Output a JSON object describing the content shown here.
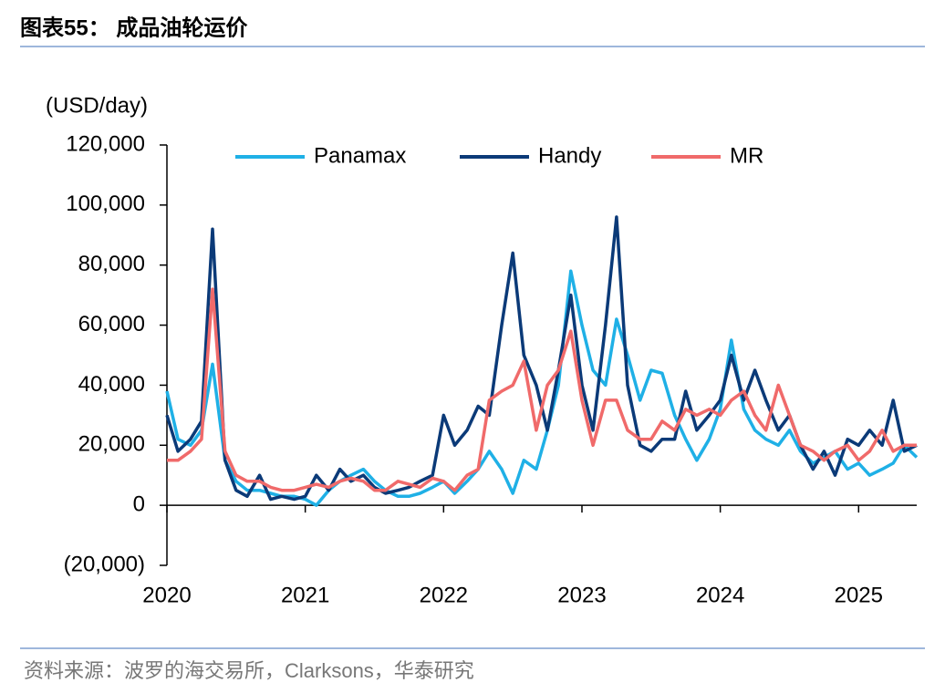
{
  "header": {
    "title": "图表55：  成品油轮运价"
  },
  "chart_data": {
    "type": "line",
    "y_label": "(USD/day)",
    "x": [
      2020,
      2020.08,
      2020.17,
      2020.25,
      2020.33,
      2020.42,
      2020.5,
      2020.58,
      2020.67,
      2020.75,
      2020.83,
      2020.92,
      2021,
      2021.08,
      2021.17,
      2021.25,
      2021.33,
      2021.42,
      2021.5,
      2021.58,
      2021.67,
      2021.75,
      2021.83,
      2021.92,
      2022,
      2022.08,
      2022.17,
      2022.25,
      2022.33,
      2022.42,
      2022.5,
      2022.58,
      2022.67,
      2022.75,
      2022.83,
      2022.92,
      2023,
      2023.08,
      2023.17,
      2023.25,
      2023.33,
      2023.42,
      2023.5,
      2023.58,
      2023.67,
      2023.75,
      2023.83,
      2023.92,
      2024,
      2024.08,
      2024.17,
      2024.25,
      2024.33,
      2024.42,
      2024.5,
      2024.58,
      2024.67,
      2024.75,
      2024.83,
      2024.92,
      2025,
      2025.08,
      2025.17,
      2025.25,
      2025.33,
      2025.42
    ],
    "series": [
      {
        "name": "Panamax",
        "color": "#1fb0e6",
        "values": [
          38000,
          22000,
          20000,
          25000,
          47000,
          15000,
          8000,
          5000,
          5000,
          4000,
          3000,
          3000,
          2000,
          0,
          5000,
          8000,
          10000,
          12000,
          8000,
          5000,
          3000,
          3000,
          4000,
          6000,
          8000,
          4000,
          8000,
          12000,
          18000,
          12000,
          4000,
          15000,
          12000,
          25000,
          40000,
          78000,
          60000,
          45000,
          40000,
          62000,
          50000,
          35000,
          45000,
          44000,
          30000,
          22000,
          15000,
          22000,
          32000,
          55000,
          32000,
          25000,
          22000,
          20000,
          25000,
          18000,
          14000,
          16000,
          18000,
          12000,
          14000,
          10000,
          12000,
          14000,
          20000,
          16000
        ]
      },
      {
        "name": "Handy",
        "color": "#0b3a78",
        "values": [
          30000,
          18000,
          22000,
          28000,
          92000,
          15000,
          5000,
          3000,
          10000,
          2000,
          3000,
          2000,
          3000,
          10000,
          5000,
          12000,
          8000,
          10000,
          6000,
          4000,
          5000,
          6000,
          8000,
          10000,
          30000,
          20000,
          25000,
          33000,
          30000,
          60000,
          84000,
          50000,
          40000,
          25000,
          45000,
          70000,
          40000,
          25000,
          60000,
          96000,
          40000,
          20000,
          18000,
          22000,
          22000,
          38000,
          25000,
          30000,
          35000,
          50000,
          35000,
          45000,
          35000,
          25000,
          30000,
          20000,
          12000,
          18000,
          10000,
          22000,
          20000,
          25000,
          20000,
          35000,
          18000,
          20000
        ]
      },
      {
        "name": "MR",
        "color": "#f06a6a",
        "values": [
          15000,
          15000,
          18000,
          22000,
          72000,
          18000,
          10000,
          8000,
          8000,
          6000,
          5000,
          5000,
          6000,
          7000,
          6000,
          8000,
          9000,
          8000,
          5000,
          5000,
          8000,
          7000,
          6000,
          9000,
          8000,
          5000,
          10000,
          12000,
          35000,
          38000,
          40000,
          48000,
          25000,
          40000,
          45000,
          58000,
          35000,
          20000,
          35000,
          35000,
          25000,
          22000,
          22000,
          28000,
          25000,
          32000,
          30000,
          32000,
          30000,
          35000,
          38000,
          30000,
          25000,
          40000,
          30000,
          20000,
          18000,
          15000,
          18000,
          20000,
          15000,
          18000,
          25000,
          18000,
          20000,
          20000
        ]
      }
    ],
    "xlim": [
      2020,
      2025.42
    ],
    "xticks": [
      2020,
      2021,
      2022,
      2023,
      2024,
      2025
    ],
    "ylim": [
      -20000,
      120000
    ],
    "yticks": [
      {
        "value": -20000,
        "label": "(20,000)"
      },
      0,
      {
        "value": 20000,
        "label": "20,000"
      },
      {
        "value": 40000,
        "label": "40,000"
      },
      {
        "value": 60000,
        "label": "60,000"
      },
      {
        "value": 80000,
        "label": "80,000"
      },
      {
        "value": 100000,
        "label": "100,000"
      },
      {
        "value": 120000,
        "label": "120,000"
      }
    ],
    "legend": "top"
  },
  "footer": {
    "source": "资料来源：波罗的海交易所，Clarksons，华泰研究"
  }
}
